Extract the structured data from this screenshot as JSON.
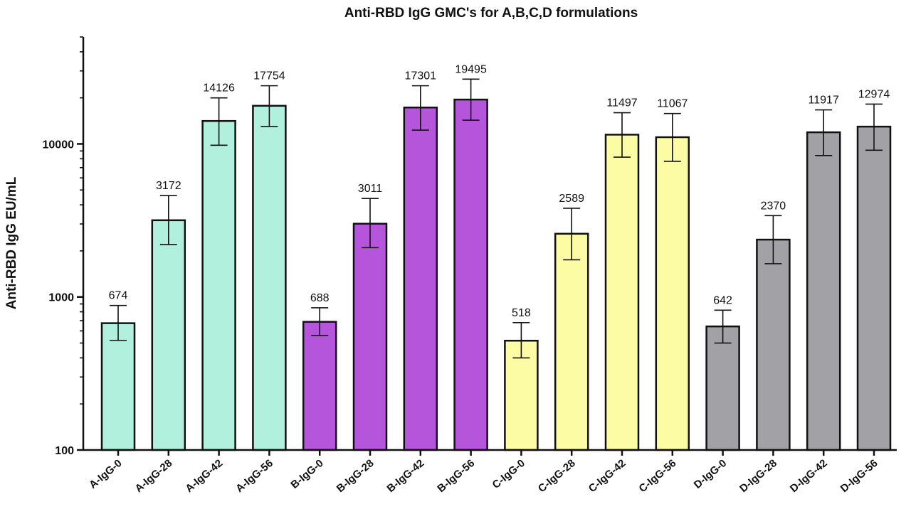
{
  "chart_data": {
    "type": "bar",
    "title": "Anti-RBD IgG GMC's for A,B,C,D formulations",
    "xlabel": "",
    "ylabel": "Anti-RBD IgG EU/mL",
    "yscale": "log",
    "ylim": [
      100,
      50000
    ],
    "yticks": [
      100,
      1000,
      10000
    ],
    "ytick_labels": [
      "100",
      "1000",
      "10000"
    ],
    "grid": false,
    "legend": "none",
    "categories": [
      "A-IgG-0",
      "A-IgG-28",
      "A-IgG-42",
      "A-IgG-56",
      "B-IgG-0",
      "B-IgG-28",
      "B-IgG-42",
      "B-IgG-56",
      "C-IgG-0",
      "C-IgG-28",
      "C-IgG-42",
      "C-IgG-56",
      "D-IgG-0",
      "D-IgG-28",
      "D-IgG-42",
      "D-IgG-56"
    ],
    "values": [
      674,
      3172,
      14126,
      17754,
      688,
      3011,
      17301,
      19495,
      518,
      2589,
      11497,
      11067,
      642,
      2370,
      11917,
      12974
    ],
    "data_labels": [
      "674",
      "3172",
      "14126",
      "17754",
      "688",
      "3011",
      "17301",
      "19495",
      "518",
      "2589",
      "11497",
      "11067",
      "642",
      "2370",
      "11917",
      "12974"
    ],
    "error_low": [
      520,
      2200,
      9800,
      13000,
      560,
      2100,
      12300,
      14300,
      400,
      1750,
      8200,
      7700,
      500,
      1650,
      8400,
      9100
    ],
    "error_high": [
      880,
      4600,
      20000,
      24000,
      850,
      4400,
      24000,
      26500,
      680,
      3800,
      16000,
      15800,
      820,
      3400,
      16700,
      18200
    ],
    "colors": [
      "#b0f0dc",
      "#b0f0dc",
      "#b0f0dc",
      "#b0f0dc",
      "#b455dc",
      "#b455dc",
      "#b455dc",
      "#b455dc",
      "#fcfca4",
      "#fcfca4",
      "#fcfca4",
      "#fcfca4",
      "#a2a2a6",
      "#a2a2a6",
      "#a2a2a6",
      "#a2a2a6"
    ]
  }
}
